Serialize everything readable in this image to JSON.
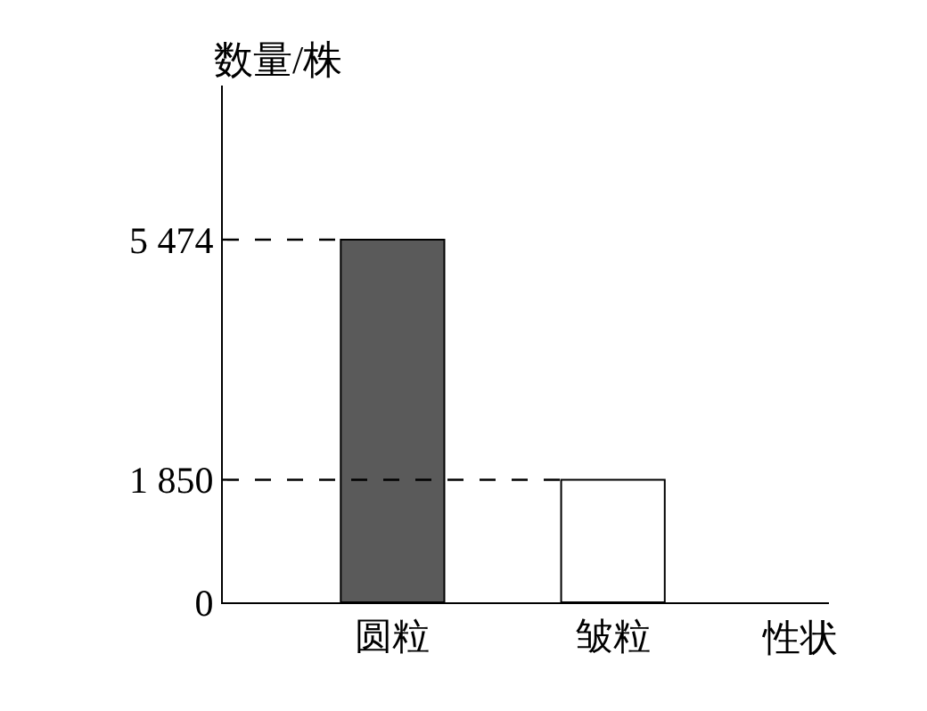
{
  "chart_data": {
    "type": "bar",
    "xlabel": "性状",
    "ylabel": "数量/株",
    "categories": [
      "圆粒",
      "皱粒"
    ],
    "values": [
      5474,
      1850
    ],
    "colors": [
      "#5a5a5a",
      "#ffffff"
    ],
    "ylim": [
      0,
      7800
    ],
    "yticks": [
      {
        "value": 0,
        "label": "0"
      },
      {
        "value": 1850,
        "label": "1 850"
      },
      {
        "value": 5474,
        "label": "5 474"
      }
    ],
    "ref_lines": [
      {
        "axis": "y",
        "value": 5474,
        "line_style": "dashed",
        "color": "#000000"
      },
      {
        "axis": "y",
        "value": 1850,
        "line_style": "dashed",
        "color": "#000000"
      }
    ],
    "legend": false
  }
}
